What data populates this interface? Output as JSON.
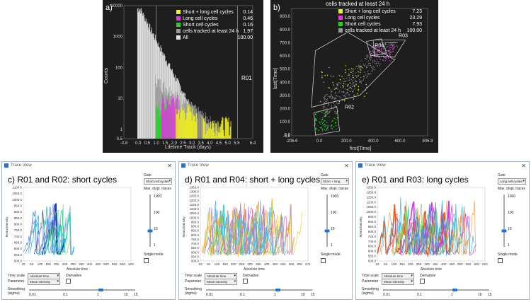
{
  "panel_a": {
    "label": "a)",
    "region_label": "R01",
    "ylabel": "Counts",
    "xlabel": "Lifetime Track (days)",
    "y_ticks": [
      "10000",
      "1000",
      "100",
      "10",
      "1",
      "0.5"
    ],
    "x_ticks": [
      "-0.8",
      "0.0",
      "0.5",
      "1.0",
      "1.5",
      "2.0",
      "2.5",
      "3.0",
      "3.5",
      "4.0",
      "4.5",
      "5.0",
      "5.5",
      "6.4"
    ],
    "legend": [
      {
        "label": "Short + long cell cycles",
        "value": "0.14",
        "color": "#f2f21c"
      },
      {
        "label": "Long cell cycles",
        "value": "0.46",
        "color": "#e238e2"
      },
      {
        "label": "Short cell cycles",
        "value": "0.16",
        "color": "#1ed81e"
      },
      {
        "label": "cells tracked at least 24 h",
        "value": "1.97",
        "color": "#9a9a9a"
      },
      {
        "label": "All",
        "value": "100.00",
        "color": "#e6e6e6"
      }
    ]
  },
  "panel_b": {
    "label": "b)",
    "title": "cells tracked at least 24 h",
    "ylabel": "last[Time]",
    "xlabel": "first[Time]",
    "y_ticks": [
      "900.0",
      "800.0",
      "700.0",
      "600.0",
      "500.0",
      "400.0",
      "300.0",
      "200.0",
      "100.0",
      "0.0",
      "-6.8"
    ],
    "x_ticks": [
      "-206.6",
      "0.0",
      "200.0",
      "400.0",
      "600.0",
      "805.9"
    ],
    "gates": [
      "R04",
      "R03",
      "R02"
    ],
    "legend": [
      {
        "label": "Short + long cell cycles",
        "value": "7.23",
        "color": "#f2f21c"
      },
      {
        "label": "Long cell cycles",
        "value": "23.29",
        "color": "#e238e2"
      },
      {
        "label": "Short cell cycles",
        "value": "7.93",
        "color": "#1ed81e"
      },
      {
        "label": "cells tracked at least 24 h",
        "value": "100.00",
        "color": "#9a9a9a"
      }
    ]
  },
  "windows": [
    {
      "id": "c",
      "title": "Trace View",
      "heading": "c) R01 and R02: short cycles",
      "gate_label": "Gate",
      "gate_value": "Short cell cycles",
      "max_traces_label": "Max. displ. traces",
      "max_ticks": [
        "1000",
        "100",
        "10",
        "1"
      ],
      "single_mode_label": "Single mode",
      "ylabel": "Mean intensity",
      "xlabel": "Absolute time",
      "y_ticks": [
        "1100.0",
        "1050.0",
        "1000.0",
        "950.0",
        "900.0",
        "850.0",
        "800.0",
        "750.0",
        "700.0",
        "650.0",
        "600.0",
        "550.0",
        "500.0"
      ],
      "x_ticks": [
        "23",
        "50",
        "100",
        "150",
        "200",
        "250",
        "300",
        "350",
        "400",
        "450",
        "500",
        "550",
        "600",
        "623"
      ],
      "time_scale_label": "Time scale",
      "time_scale_value": "Absolute time",
      "parameter_label": "Parameter",
      "parameter_value": "Mean intensity",
      "derivative_label": "Derivative",
      "smoothing_label": "Smoothing\n(sigma)",
      "smooth_ticks": [
        "0.01",
        "0.1",
        "1",
        "10",
        "15"
      ],
      "trace_colors": [
        "#1dd4c7",
        "#2a2db8",
        "#7ee07a",
        "#3b8edb",
        "#0fb8ad",
        "#9b9be8"
      ]
    },
    {
      "id": "d",
      "title": "Trace View",
      "heading": "d) R01 and R04: short + long cycles",
      "gate_label": "Gate",
      "gate_value": "Short + long",
      "max_traces_label": "Max. displ. traces",
      "max_ticks": [
        "1000",
        "100",
        "10",
        "1"
      ],
      "single_mode_label": "Single mode",
      "ylabel": "Mean intensity",
      "xlabel": "Absolute time",
      "y_ticks": [
        "1350.0",
        "1300.0",
        "1250.0",
        "1200.0",
        "1150.0",
        "1100.0",
        "1050.0",
        "1000.0",
        "950.0",
        "900.0",
        "850.0",
        "800.0",
        "750.0",
        "700.0",
        "650.0",
        "600.0",
        "550.0",
        "500.0"
      ],
      "x_ticks": [
        "23",
        "50",
        "100",
        "150",
        "200",
        "250",
        "300",
        "350",
        "400",
        "450",
        "500",
        "550",
        "600",
        "671"
      ],
      "time_scale_label": "Time scale",
      "time_scale_value": "Absolute time",
      "parameter_label": "Parameter",
      "parameter_value": "Mean intensity",
      "derivative_label": "Derivative",
      "smoothing_label": "Smoothing\n(sigma)",
      "smooth_ticks": [
        "0.01",
        "0.1",
        "1",
        "10",
        "15"
      ],
      "trace_colors": [
        "#1ed4e0",
        "#f2c94c",
        "#e05ec0",
        "#f0a030",
        "#8fe07a",
        "#b07ae0",
        "#4ab0f0"
      ]
    },
    {
      "id": "e",
      "title": "Trace View",
      "heading": "e) R01 and R03: long cycles",
      "gate_label": "Gate",
      "gate_value": "Long cell cycles",
      "max_traces_label": "Max. displ. traces",
      "max_ticks": [
        "1000",
        "100",
        "10",
        "1"
      ],
      "single_mode_label": "Single mode",
      "ylabel": "Mean intensity",
      "xlabel": "Absolute time",
      "y_ticks": [
        "1250.0",
        "1200.0",
        "1150.0",
        "1100.0",
        "1050.0",
        "1000.0",
        "950.0",
        "900.0",
        "850.0",
        "800.0",
        "750.0",
        "700.0",
        "650.0",
        "600.0",
        "550.0",
        "500.0"
      ],
      "x_ticks": [
        "23",
        "50",
        "100",
        "150",
        "200",
        "250",
        "300",
        "350",
        "400",
        "450",
        "500",
        "550",
        "600",
        "623"
      ],
      "time_scale_label": "Time scale",
      "time_scale_value": "Absolute time",
      "parameter_label": "Parameter",
      "parameter_value": "Mean intensity",
      "derivative_label": "Derivative",
      "smoothing_label": "Smoothing\n(sigma)",
      "smooth_ticks": [
        "0.01",
        "0.1",
        "1",
        "10",
        "15"
      ],
      "trace_colors": [
        "#e8561c",
        "#c73ad8",
        "#38b6e0",
        "#f2a04a",
        "#7ad86a",
        "#5070e0"
      ]
    }
  ],
  "chart_data": [
    {
      "type": "bar",
      "title": "",
      "xlabel": "Lifetime Track (days)",
      "ylabel": "Counts",
      "yscale": "log",
      "xlim": [
        -0.8,
        6.4
      ],
      "ylim": [
        0.5,
        10000
      ],
      "series": [
        {
          "name": "All",
          "color": "#e6e6e6"
        },
        {
          "name": "cells tracked at least 24 h",
          "color": "#9a9a9a"
        },
        {
          "name": "Short cell cycles",
          "color": "#1ed81e"
        },
        {
          "name": "Long cell cycles",
          "color": "#e238e2"
        },
        {
          "name": "Short + long cell cycles",
          "color": "#f2f21c"
        }
      ]
    },
    {
      "type": "scatter",
      "title": "cells tracked at least 24 h",
      "xlabel": "first[Time]",
      "ylabel": "last[Time]",
      "xlim": [
        -206.6,
        805.9
      ],
      "ylim": [
        -6.8,
        960
      ]
    }
  ]
}
